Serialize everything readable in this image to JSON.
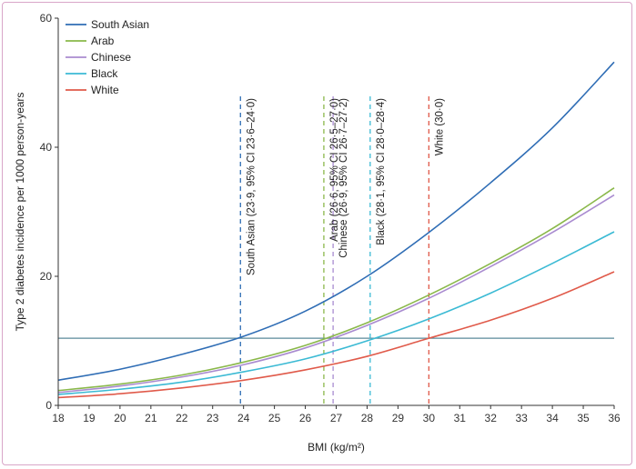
{
  "chart_data": {
    "type": "line",
    "title": "",
    "xlabel": "BMI (kg/m²)",
    "ylabel": "Type 2 diabetes incidence per 1000 person-years",
    "xlim": [
      18,
      36
    ],
    "ylim": [
      0,
      60
    ],
    "xticks": [
      18,
      19,
      20,
      21,
      22,
      23,
      24,
      25,
      26,
      27,
      28,
      29,
      30,
      31,
      32,
      33,
      34,
      35,
      36
    ],
    "yticks": [
      0,
      20,
      40,
      60
    ],
    "grid": false,
    "legend_position": "top-left",
    "reference_line": {
      "y": 10.4,
      "color": "#5a8a9a"
    },
    "series": [
      {
        "name": "South Asian",
        "color": "#2f6db5",
        "x": [
          18,
          20,
          22,
          24,
          26,
          28,
          30,
          32,
          34,
          36
        ],
        "y": [
          3.9,
          5.6,
          7.9,
          10.7,
          14.6,
          20.0,
          26.8,
          34.5,
          43.0,
          53.2
        ]
      },
      {
        "name": "Arab",
        "color": "#8ab84a",
        "x": [
          18,
          20,
          22,
          24,
          26,
          28,
          30,
          32,
          34,
          36
        ],
        "y": [
          2.3,
          3.3,
          4.7,
          6.7,
          9.3,
          12.8,
          17.1,
          22.0,
          27.4,
          33.7
        ]
      },
      {
        "name": "Chinese",
        "color": "#a98bd0",
        "x": [
          18,
          20,
          22,
          24,
          26,
          28,
          30,
          32,
          34,
          36
        ],
        "y": [
          2.0,
          3.0,
          4.4,
          6.3,
          8.9,
          12.4,
          16.6,
          21.5,
          26.8,
          32.6
        ]
      },
      {
        "name": "Black",
        "color": "#3bbad4",
        "x": [
          18,
          20,
          22,
          24,
          26,
          28,
          30,
          32,
          34,
          36
        ],
        "y": [
          1.7,
          2.5,
          3.6,
          5.2,
          7.2,
          10.0,
          13.4,
          17.4,
          22.0,
          26.9
        ]
      },
      {
        "name": "White",
        "color": "#e05a4a",
        "x": [
          18,
          20,
          22,
          24,
          26,
          28,
          30,
          32,
          34,
          36
        ],
        "y": [
          1.2,
          1.8,
          2.7,
          3.9,
          5.5,
          7.6,
          10.4,
          13.2,
          16.6,
          20.7
        ]
      }
    ],
    "annotations": [
      {
        "x": 23.9,
        "label": "South Asian (23·9, 95% CI 23·6–24·0)",
        "color": "#2f6db5"
      },
      {
        "x": 26.6,
        "label": "Arab (26·6, 95% CI 26·5–27·0)",
        "color": "#8ab84a"
      },
      {
        "x": 26.9,
        "label": "Chinese (26·9, 95% CI 26·7–27·2)",
        "color": "#a98bd0"
      },
      {
        "x": 28.1,
        "label": "Black (28·1, 95% CI 28·0–28·4)",
        "color": "#3bbad4"
      },
      {
        "x": 30.0,
        "label": "White (30·0)",
        "color": "#e05a4a"
      }
    ]
  }
}
